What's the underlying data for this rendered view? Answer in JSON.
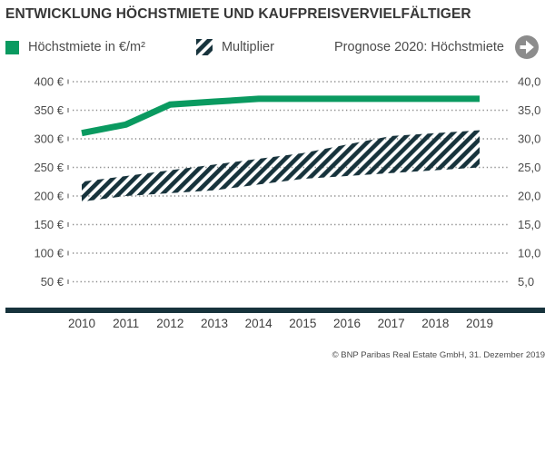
{
  "header": {
    "title": "ENTWICKLUNG HÖCHSTMIETE UND KAUFPREISVERVIELFÄLTIGER"
  },
  "legend": {
    "hoechstmiete_label": "Höchstmiete in €/m²",
    "multiplier_label": "Multiplier",
    "forecast_label": "Prognose 2020: Höchstmiete",
    "forecast_arrow_direction": "right"
  },
  "footer": {
    "copyright": "© BNP Paribas Real Estate GmbH, 31. Dezember 2019"
  },
  "colors": {
    "green": "#0a9a60",
    "dark_teal": "#17333c",
    "axis_text": "#4b4b4b",
    "year_text": "#3f3f3f",
    "grid_dot": "#8a8a8a",
    "arrow_gray": "#8c8c8c"
  },
  "chart_data": {
    "type": "line",
    "title": "ENTWICKLUNG HÖCHSTMIETE UND KAUFPREISVERVIELFÄLTIGER",
    "x": [
      2010,
      2011,
      2012,
      2013,
      2014,
      2015,
      2016,
      2017,
      2018,
      2019
    ],
    "series": [
      {
        "name": "Höchstmiete in €/m²",
        "kind": "line",
        "axis": "left",
        "unit": "€/m²",
        "values": [
          310,
          325,
          360,
          365,
          370,
          370,
          370,
          370,
          370,
          370
        ]
      },
      {
        "name": "Multiplier",
        "kind": "range_band",
        "axis": "right",
        "min": [
          19.0,
          20.0,
          20.5,
          21.0,
          22.0,
          23.0,
          23.5,
          24.0,
          24.5,
          25.0
        ],
        "max": [
          22.5,
          23.5,
          24.5,
          25.5,
          26.5,
          27.5,
          29.0,
          30.5,
          31.0,
          31.5
        ]
      }
    ],
    "left_axis": {
      "tick_labels": [
        "400 €",
        "350 €",
        "300 €",
        "250 €",
        "200 €",
        "150 €",
        "100 €",
        "50 €"
      ],
      "tick_values": [
        400,
        350,
        300,
        250,
        200,
        150,
        100,
        50
      ],
      "range": [
        0,
        400
      ],
      "unit": "€/m²"
    },
    "right_axis": {
      "tick_labels": [
        "40,0",
        "35,0",
        "30,0",
        "25,0",
        "20,0",
        "15,0",
        "10,0",
        "5,0"
      ],
      "tick_values": [
        40,
        35,
        30,
        25,
        20,
        15,
        10,
        5
      ],
      "range": [
        0,
        40
      ]
    },
    "grid": "horizontal-dotted",
    "legend_position": "top",
    "forecast_annotation": "Prognose 2020: Höchstmiete"
  }
}
